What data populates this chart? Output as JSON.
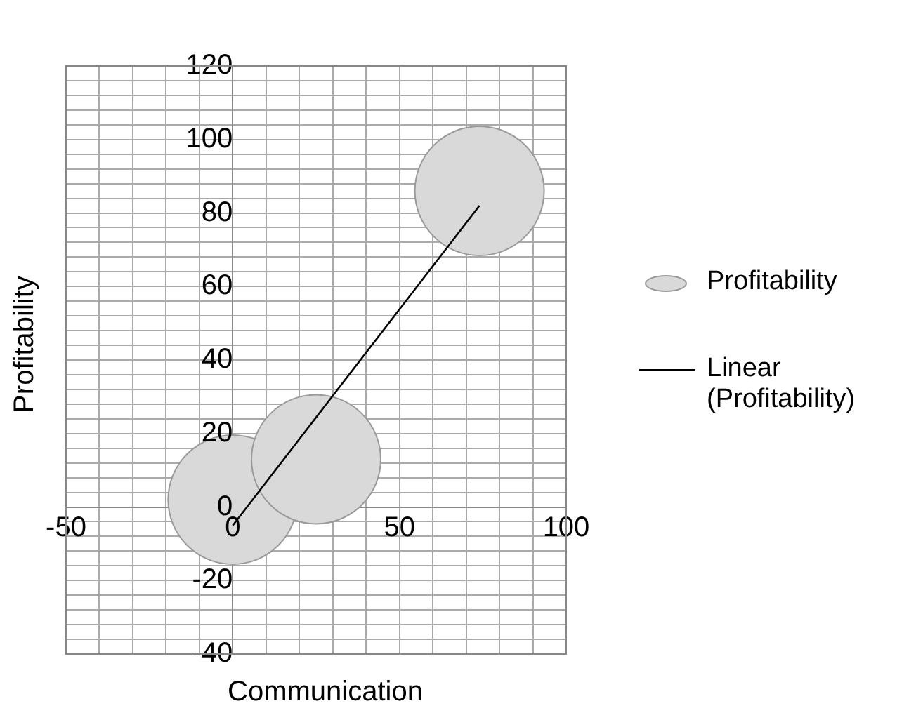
{
  "chart_data": {
    "type": "bubble",
    "xlabel": "Communication",
    "ylabel": "Profitability",
    "xlim": [
      -50,
      100
    ],
    "xticks": [
      -50,
      {
        "value": -40,
        "label": null
      },
      {
        "value": -30,
        "label": null
      },
      {
        "value": -20,
        "label": null
      },
      {
        "value": -10,
        "label": null
      },
      0,
      {
        "value": 10,
        "label": null
      },
      {
        "value": 20,
        "label": null
      },
      {
        "value": 30,
        "label": null
      },
      {
        "value": 40,
        "label": null
      },
      50,
      {
        "value": 60,
        "label": null
      },
      {
        "value": 70,
        "label": null
      },
      {
        "value": 80,
        "label": null
      },
      {
        "value": 90,
        "label": null
      },
      100
    ],
    "ylim": [
      -40,
      120
    ],
    "yticks": [
      -40,
      {
        "value": -36,
        "label": null
      },
      {
        "value": -32,
        "label": null
      },
      {
        "value": -28,
        "label": null
      },
      {
        "value": -24,
        "label": null
      },
      -20,
      {
        "value": -16,
        "label": null
      },
      {
        "value": -12,
        "label": null
      },
      {
        "value": -8,
        "label": null
      },
      {
        "value": -4,
        "label": null
      },
      0,
      {
        "value": 4,
        "label": null
      },
      {
        "value": 8,
        "label": null
      },
      {
        "value": 12,
        "label": null
      },
      {
        "value": 16,
        "label": null
      },
      20,
      {
        "value": 24,
        "label": null
      },
      {
        "value": 28,
        "label": null
      },
      {
        "value": 32,
        "label": null
      },
      {
        "value": 36,
        "label": null
      },
      40,
      {
        "value": 44,
        "label": null
      },
      {
        "value": 48,
        "label": null
      },
      {
        "value": 52,
        "label": null
      },
      {
        "value": 56,
        "label": null
      },
      60,
      {
        "value": 64,
        "label": null
      },
      {
        "value": 68,
        "label": null
      },
      {
        "value": 72,
        "label": null
      },
      {
        "value": 76,
        "label": null
      },
      80,
      {
        "value": 84,
        "label": null
      },
      {
        "value": 88,
        "label": null
      },
      {
        "value": 92,
        "label": null
      },
      {
        "value": 96,
        "label": null
      },
      100,
      {
        "value": 104,
        "label": null
      },
      {
        "value": 108,
        "label": null
      },
      {
        "value": 112,
        "label": null
      },
      {
        "value": 116,
        "label": null
      },
      120
    ],
    "grid": true,
    "legend": "right",
    "series": [
      {
        "name": "Profitability",
        "color": "#d9d9d9",
        "x": [
          0,
          25,
          74
        ],
        "values": [
          2,
          13,
          86
        ],
        "sizes": [
          1,
          1,
          1
        ]
      },
      {
        "name": "Linear (Profitability)",
        "type": "line",
        "color": "#000000",
        "x": [
          0,
          74
        ],
        "values": [
          -5,
          82
        ],
        "marker": "none",
        "line_style": "solid"
      }
    ]
  }
}
